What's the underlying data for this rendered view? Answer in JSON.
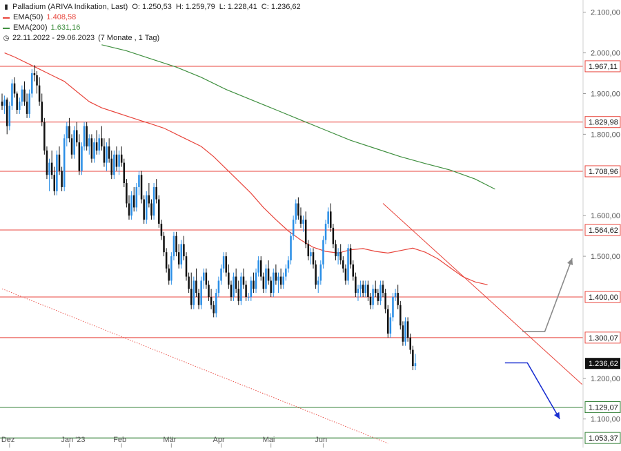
{
  "header": {
    "instrument": "Palladium (ARIVA Indikation, Last)",
    "open": "O: 1.250,53",
    "high": "H: 1.259,79",
    "low": "L: 1.228,41",
    "close": "C: 1.236,62",
    "ema50_label": "EMA(50)",
    "ema50_value": "1.408,58",
    "ema200_label": "EMA(200)",
    "ema200_value": "1.631,16",
    "range_label": "22.11.2022 - 29.06.2023",
    "range_detail": "(7 Monate , 1 Tag)"
  },
  "colors": {
    "bull": "#2a8ee6",
    "bear": "#111111",
    "ema50": "#e8453c",
    "ema200": "#3f8f3f",
    "hline_red": "#e8453c",
    "hline_green": "#2e7d32",
    "arrow_up": "#8a8a8a",
    "arrow_down": "#1a2fd1"
  },
  "chart_data": {
    "type": "candlestick",
    "title": "Palladium (ARIVA Indikation, Last)",
    "x_tick_labels": [
      "Dez",
      "Jan '23",
      "Feb",
      "Mär",
      "Apr",
      "Mai",
      "Jun"
    ],
    "y_tick_labels": [
      "2.100,00",
      "2.000,00",
      "1.900,00",
      "1.800,00",
      "1.600,00",
      "1.500,00",
      "1.200,00",
      "1.100,00"
    ],
    "ylim": [
      1040,
      2130
    ],
    "horizontal_levels": [
      {
        "value": 1967.11,
        "label": "1.967,11",
        "color": "#e8453c"
      },
      {
        "value": 1829.98,
        "label": "1.829,98",
        "color": "#e8453c"
      },
      {
        "value": 1708.96,
        "label": "1.708,96",
        "color": "#e8453c"
      },
      {
        "value": 1564.62,
        "label": "1.564,62",
        "color": "#e8453c"
      },
      {
        "value": 1400.0,
        "label": "1.400,00",
        "color": "#e8453c"
      },
      {
        "value": 1300.07,
        "label": "1.300,07",
        "color": "#e8453c"
      },
      {
        "value": 1129.07,
        "label": "1.129,07",
        "color": "#2e7d32"
      },
      {
        "value": 1053.37,
        "label": "1.053,37",
        "color": "#2e7d32"
      }
    ],
    "last_price": {
      "value": 1236.62,
      "label": "1.236,62"
    },
    "series": [
      {
        "name": "EMA(50)",
        "last": 1408.58
      },
      {
        "name": "EMA(200)",
        "last": 1631.16
      }
    ],
    "ema50_points": [
      [
        1,
        2000
      ],
      [
        5,
        1990
      ],
      [
        10,
        1975
      ],
      [
        15,
        1960
      ],
      [
        20,
        1945
      ],
      [
        25,
        1930
      ],
      [
        30,
        1905
      ],
      [
        35,
        1880
      ],
      [
        40,
        1865
      ],
      [
        45,
        1855
      ],
      [
        50,
        1845
      ],
      [
        55,
        1835
      ],
      [
        60,
        1825
      ],
      [
        65,
        1815
      ],
      [
        70,
        1800
      ],
      [
        75,
        1785
      ],
      [
        80,
        1770
      ],
      [
        85,
        1745
      ],
      [
        90,
        1715
      ],
      [
        95,
        1685
      ],
      [
        100,
        1655
      ],
      [
        105,
        1620
      ],
      [
        110,
        1590
      ],
      [
        115,
        1562
      ],
      [
        120,
        1540
      ],
      [
        125,
        1522
      ],
      [
        130,
        1512
      ],
      [
        135,
        1508
      ],
      [
        140,
        1516
      ],
      [
        145,
        1519
      ],
      [
        150,
        1512
      ],
      [
        155,
        1508
      ],
      [
        160,
        1514
      ],
      [
        165,
        1520
      ],
      [
        170,
        1510
      ],
      [
        175,
        1494
      ],
      [
        180,
        1472
      ],
      [
        185,
        1450
      ],
      [
        190,
        1437
      ],
      [
        195,
        1430
      ],
      [
        198,
        1408
      ]
    ],
    "ema200_points": [
      [
        40,
        2020
      ],
      [
        50,
        2005
      ],
      [
        60,
        1985
      ],
      [
        70,
        1965
      ],
      [
        80,
        1940
      ],
      [
        90,
        1910
      ],
      [
        100,
        1885
      ],
      [
        110,
        1860
      ],
      [
        120,
        1835
      ],
      [
        130,
        1810
      ],
      [
        140,
        1785
      ],
      [
        150,
        1765
      ],
      [
        160,
        1745
      ],
      [
        170,
        1728
      ],
      [
        180,
        1712
      ],
      [
        190,
        1690
      ],
      [
        198,
        1665
      ],
      [
        199,
        1631
      ]
    ],
    "trendlines": [
      {
        "from": [
          153,
          1630
        ],
        "to": [
          233,
          1185
        ],
        "style": "solid"
      },
      {
        "from": [
          0,
          1420
        ],
        "to": [
          155,
          1040
        ],
        "style": "dotted"
      }
    ],
    "projections": [
      {
        "direction": "up",
        "from": [
          209,
          1315
        ],
        "mid": [
          218,
          1315
        ],
        "to": [
          229,
          1495
        ]
      },
      {
        "direction": "down",
        "from": [
          202,
          1238
        ],
        "mid": [
          211,
          1238
        ],
        "to": [
          224,
          1100
        ]
      }
    ],
    "candles": [
      [
        1880,
        1900,
        1860,
        1870
      ],
      [
        1870,
        1895,
        1850,
        1885
      ],
      [
        1885,
        1890,
        1800,
        1820
      ],
      [
        1820,
        1880,
        1810,
        1870
      ],
      [
        1870,
        1935,
        1860,
        1925
      ],
      [
        1925,
        1940,
        1890,
        1900
      ],
      [
        1900,
        1905,
        1850,
        1860
      ],
      [
        1860,
        1890,
        1850,
        1880
      ],
      [
        1880,
        1920,
        1870,
        1910
      ],
      [
        1910,
        1930,
        1870,
        1880
      ],
      [
        1880,
        1900,
        1840,
        1850
      ],
      [
        1850,
        1910,
        1840,
        1900
      ],
      [
        1900,
        1960,
        1890,
        1950
      ],
      [
        1950,
        1970,
        1930,
        1945
      ],
      [
        1945,
        1955,
        1900,
        1920
      ],
      [
        1920,
        1940,
        1870,
        1880
      ],
      [
        1880,
        1900,
        1820,
        1830
      ],
      [
        1830,
        1840,
        1750,
        1760
      ],
      [
        1760,
        1770,
        1690,
        1700
      ],
      [
        1700,
        1740,
        1660,
        1730
      ],
      [
        1730,
        1760,
        1690,
        1700
      ],
      [
        1700,
        1720,
        1650,
        1660
      ],
      [
        1660,
        1760,
        1650,
        1750
      ],
      [
        1750,
        1770,
        1700,
        1710
      ],
      [
        1710,
        1720,
        1660,
        1670
      ],
      [
        1670,
        1800,
        1660,
        1790
      ],
      [
        1790,
        1830,
        1770,
        1820
      ],
      [
        1820,
        1840,
        1780,
        1790
      ],
      [
        1790,
        1800,
        1740,
        1750
      ],
      [
        1750,
        1820,
        1740,
        1810
      ],
      [
        1810,
        1830,
        1770,
        1780
      ],
      [
        1780,
        1800,
        1700,
        1710
      ],
      [
        1710,
        1780,
        1700,
        1770
      ],
      [
        1770,
        1830,
        1760,
        1820
      ],
      [
        1820,
        1830,
        1760,
        1770
      ],
      [
        1770,
        1800,
        1750,
        1790
      ],
      [
        1790,
        1800,
        1730,
        1740
      ],
      [
        1740,
        1790,
        1730,
        1780
      ],
      [
        1780,
        1810,
        1750,
        1760
      ],
      [
        1760,
        1800,
        1750,
        1790
      ],
      [
        1790,
        1820,
        1760,
        1770
      ],
      [
        1770,
        1790,
        1720,
        1730
      ],
      [
        1730,
        1780,
        1710,
        1770
      ],
      [
        1770,
        1790,
        1730,
        1740
      ],
      [
        1740,
        1760,
        1690,
        1700
      ],
      [
        1700,
        1760,
        1690,
        1750
      ],
      [
        1750,
        1770,
        1710,
        1720
      ],
      [
        1720,
        1760,
        1700,
        1750
      ],
      [
        1750,
        1770,
        1720,
        1730
      ],
      [
        1730,
        1740,
        1670,
        1680
      ],
      [
        1680,
        1690,
        1620,
        1630
      ],
      [
        1630,
        1650,
        1590,
        1600
      ],
      [
        1600,
        1660,
        1590,
        1650
      ],
      [
        1650,
        1670,
        1610,
        1620
      ],
      [
        1620,
        1680,
        1610,
        1670
      ],
      [
        1670,
        1710,
        1650,
        1700
      ],
      [
        1700,
        1710,
        1630,
        1640
      ],
      [
        1640,
        1650,
        1580,
        1590
      ],
      [
        1590,
        1660,
        1580,
        1650
      ],
      [
        1650,
        1680,
        1620,
        1630
      ],
      [
        1630,
        1640,
        1590,
        1600
      ],
      [
        1600,
        1680,
        1590,
        1670
      ],
      [
        1670,
        1690,
        1630,
        1640
      ],
      [
        1640,
        1650,
        1570,
        1580
      ],
      [
        1580,
        1590,
        1540,
        1550
      ],
      [
        1550,
        1560,
        1500,
        1510
      ],
      [
        1510,
        1520,
        1460,
        1470
      ],
      [
        1470,
        1480,
        1430,
        1440
      ],
      [
        1440,
        1510,
        1430,
        1500
      ],
      [
        1500,
        1560,
        1490,
        1550
      ],
      [
        1550,
        1560,
        1500,
        1510
      ],
      [
        1510,
        1530,
        1470,
        1480
      ],
      [
        1480,
        1540,
        1470,
        1530
      ],
      [
        1530,
        1550,
        1490,
        1500
      ],
      [
        1500,
        1510,
        1440,
        1450
      ],
      [
        1450,
        1460,
        1410,
        1420
      ],
      [
        1420,
        1460,
        1370,
        1380
      ],
      [
        1380,
        1450,
        1370,
        1440
      ],
      [
        1440,
        1470,
        1400,
        1410
      ],
      [
        1410,
        1420,
        1370,
        1380
      ],
      [
        1380,
        1450,
        1370,
        1440
      ],
      [
        1440,
        1470,
        1420,
        1460
      ],
      [
        1460,
        1470,
        1420,
        1430
      ],
      [
        1430,
        1440,
        1390,
        1400
      ],
      [
        1400,
        1420,
        1370,
        1380
      ],
      [
        1380,
        1390,
        1350,
        1360
      ],
      [
        1360,
        1420,
        1350,
        1410
      ],
      [
        1410,
        1450,
        1400,
        1440
      ],
      [
        1440,
        1480,
        1430,
        1470
      ],
      [
        1470,
        1510,
        1460,
        1500
      ],
      [
        1500,
        1510,
        1450,
        1460
      ],
      [
        1460,
        1480,
        1420,
        1430
      ],
      [
        1430,
        1440,
        1390,
        1400
      ],
      [
        1400,
        1460,
        1390,
        1450
      ],
      [
        1450,
        1470,
        1410,
        1420
      ],
      [
        1420,
        1440,
        1380,
        1390
      ],
      [
        1390,
        1460,
        1380,
        1450
      ],
      [
        1450,
        1470,
        1420,
        1430
      ],
      [
        1430,
        1440,
        1390,
        1400
      ],
      [
        1400,
        1410,
        1390,
        1400
      ],
      [
        1400,
        1450,
        1390,
        1440
      ],
      [
        1440,
        1460,
        1410,
        1420
      ],
      [
        1420,
        1470,
        1410,
        1460
      ],
      [
        1460,
        1500,
        1450,
        1490
      ],
      [
        1490,
        1500,
        1440,
        1450
      ],
      [
        1450,
        1460,
        1410,
        1420
      ],
      [
        1420,
        1480,
        1410,
        1470
      ],
      [
        1470,
        1490,
        1430,
        1440
      ],
      [
        1440,
        1450,
        1400,
        1410
      ],
      [
        1410,
        1470,
        1400,
        1460
      ],
      [
        1460,
        1480,
        1430,
        1440
      ],
      [
        1440,
        1460,
        1410,
        1450
      ],
      [
        1450,
        1470,
        1420,
        1430
      ],
      [
        1430,
        1460,
        1420,
        1450
      ],
      [
        1450,
        1480,
        1440,
        1470
      ],
      [
        1470,
        1500,
        1460,
        1490
      ],
      [
        1490,
        1560,
        1480,
        1550
      ],
      [
        1550,
        1600,
        1540,
        1590
      ],
      [
        1590,
        1640,
        1580,
        1630
      ],
      [
        1630,
        1645,
        1590,
        1600
      ],
      [
        1600,
        1620,
        1570,
        1580
      ],
      [
        1580,
        1600,
        1560,
        1590
      ],
      [
        1590,
        1610,
        1520,
        1530
      ],
      [
        1530,
        1540,
        1490,
        1500
      ],
      [
        1500,
        1520,
        1480,
        1510
      ],
      [
        1510,
        1520,
        1470,
        1480
      ],
      [
        1480,
        1490,
        1420,
        1430
      ],
      [
        1430,
        1450,
        1410,
        1440
      ],
      [
        1440,
        1490,
        1430,
        1480
      ],
      [
        1480,
        1550,
        1470,
        1540
      ],
      [
        1540,
        1590,
        1530,
        1580
      ],
      [
        1580,
        1620,
        1570,
        1610
      ],
      [
        1610,
        1630,
        1560,
        1570
      ],
      [
        1570,
        1580,
        1520,
        1530
      ],
      [
        1530,
        1540,
        1490,
        1500
      ],
      [
        1500,
        1520,
        1480,
        1510
      ],
      [
        1510,
        1530,
        1480,
        1490
      ],
      [
        1490,
        1500,
        1460,
        1470
      ],
      [
        1470,
        1480,
        1430,
        1440
      ],
      [
        1440,
        1530,
        1430,
        1520
      ],
      [
        1520,
        1530,
        1470,
        1480
      ],
      [
        1480,
        1490,
        1440,
        1450
      ],
      [
        1450,
        1460,
        1400,
        1410
      ],
      [
        1410,
        1430,
        1390,
        1420
      ],
      [
        1420,
        1440,
        1400,
        1430
      ],
      [
        1430,
        1440,
        1400,
        1410
      ],
      [
        1410,
        1440,
        1400,
        1430
      ],
      [
        1430,
        1440,
        1390,
        1400
      ],
      [
        1400,
        1410,
        1370,
        1380
      ],
      [
        1380,
        1430,
        1370,
        1420
      ],
      [
        1420,
        1440,
        1400,
        1410
      ],
      [
        1410,
        1420,
        1380,
        1390
      ],
      [
        1390,
        1440,
        1380,
        1430
      ],
      [
        1430,
        1440,
        1400,
        1410
      ],
      [
        1410,
        1420,
        1360,
        1370
      ],
      [
        1370,
        1380,
        1300,
        1310
      ],
      [
        1310,
        1360,
        1300,
        1350
      ],
      [
        1350,
        1410,
        1340,
        1400
      ],
      [
        1400,
        1420,
        1390,
        1410
      ],
      [
        1410,
        1430,
        1370,
        1380
      ],
      [
        1380,
        1390,
        1320,
        1330
      ],
      [
        1330,
        1340,
        1280,
        1290
      ],
      [
        1290,
        1350,
        1280,
        1340
      ],
      [
        1340,
        1350,
        1290,
        1300
      ],
      [
        1300,
        1310,
        1260,
        1270
      ],
      [
        1270,
        1280,
        1220,
        1230
      ],
      [
        1230,
        1260,
        1220,
        1237
      ]
    ]
  }
}
